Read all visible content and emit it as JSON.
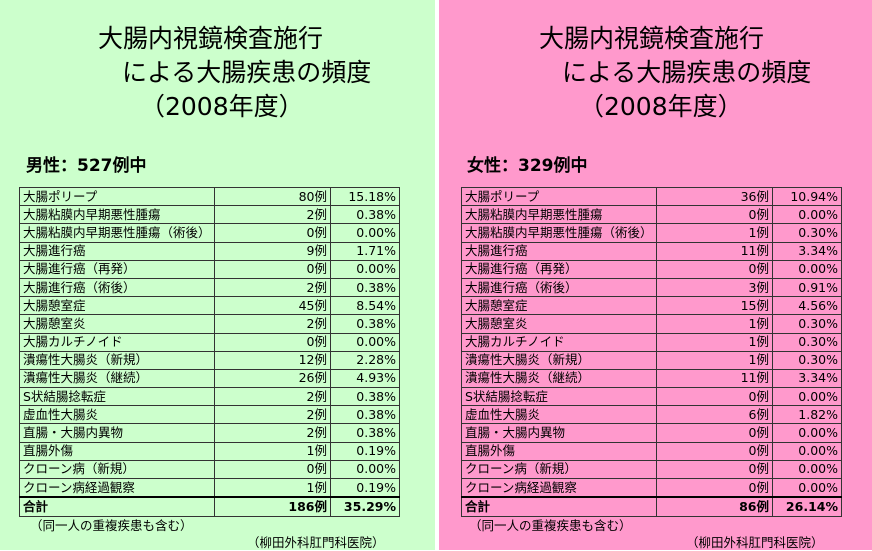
{
  "male": {
    "title_line1": "大腸内視鏡検査施行",
    "title_line2": "による大腸疾患の頻度",
    "title_line3": "（2008年度）",
    "subtitle": "男性：527例中",
    "rows": [
      {
        "name": "大腸ポリープ",
        "count": "80例",
        "pct": "15.18%"
      },
      {
        "name": "大腸粘膜内早期悪性腫瘍",
        "count": "2例",
        "pct": "0.38%"
      },
      {
        "name": "大腸粘膜内早期悪性腫瘍（術後）",
        "count": "0例",
        "pct": "0.00%"
      },
      {
        "name": "大腸進行癌",
        "count": "9例",
        "pct": "1.71%"
      },
      {
        "name": "大腸進行癌（再発）",
        "count": "0例",
        "pct": "0.00%"
      },
      {
        "name": "大腸進行癌（術後）",
        "count": "2例",
        "pct": "0.38%"
      },
      {
        "name": "大腸憩室症",
        "count": "45例",
        "pct": "8.54%"
      },
      {
        "name": "大腸憩室炎",
        "count": "2例",
        "pct": "0.38%"
      },
      {
        "name": "大腸カルチノイド",
        "count": "0例",
        "pct": "0.00%"
      },
      {
        "name": "潰瘍性大腸炎（新規）",
        "count": "12例",
        "pct": "2.28%"
      },
      {
        "name": "潰瘍性大腸炎（継続）",
        "count": "26例",
        "pct": "4.93%"
      },
      {
        "name": "S状結腸捻転症",
        "count": "2例",
        "pct": "0.38%"
      },
      {
        "name": "虚血性大腸炎",
        "count": "2例",
        "pct": "0.38%"
      },
      {
        "name": "直腸・大腸内異物",
        "count": "2例",
        "pct": "0.38%"
      },
      {
        "name": "直腸外傷",
        "count": "1例",
        "pct": "0.19%"
      },
      {
        "name": "クローン病（新規）",
        "count": "0例",
        "pct": "0.00%"
      },
      {
        "name": "クローン病経過観察",
        "count": "1例",
        "pct": "0.19%"
      }
    ],
    "total": {
      "name": "合計",
      "count": "186例",
      "pct": "35.29%"
    },
    "note": "（同一人の重複疾患も含む）",
    "clinic": "（柳田外科肛門科医院）"
  },
  "female": {
    "title_line1": "大腸内視鏡検査施行",
    "title_line2": "による大腸疾患の頻度",
    "title_line3": "（2008年度）",
    "subtitle": "女性：329例中",
    "rows": [
      {
        "name": "大腸ポリープ",
        "count": "36例",
        "pct": "10.94%"
      },
      {
        "name": "大腸粘膜内早期悪性腫瘍",
        "count": "0例",
        "pct": "0.00%"
      },
      {
        "name": "大腸粘膜内早期悪性腫瘍（術後）",
        "count": "1例",
        "pct": "0.30%"
      },
      {
        "name": "大腸進行癌",
        "count": "11例",
        "pct": "3.34%"
      },
      {
        "name": "大腸進行癌（再発）",
        "count": "0例",
        "pct": "0.00%"
      },
      {
        "name": "大腸進行癌（術後）",
        "count": "3例",
        "pct": "0.91%"
      },
      {
        "name": "大腸憩室症",
        "count": "15例",
        "pct": "4.56%"
      },
      {
        "name": "大腸憩室炎",
        "count": "1例",
        "pct": "0.30%"
      },
      {
        "name": "大腸カルチノイド",
        "count": "1例",
        "pct": "0.30%"
      },
      {
        "name": "潰瘍性大腸炎（新規）",
        "count": "1例",
        "pct": "0.30%"
      },
      {
        "name": "潰瘍性大腸炎（継続）",
        "count": "11例",
        "pct": "3.34%"
      },
      {
        "name": "S状結腸捻転症",
        "count": "0例",
        "pct": "0.00%"
      },
      {
        "name": "虚血性大腸炎",
        "count": "6例",
        "pct": "1.82%"
      },
      {
        "name": "直腸・大腸内異物",
        "count": "0例",
        "pct": "0.00%"
      },
      {
        "name": "直腸外傷",
        "count": "0例",
        "pct": "0.00%"
      },
      {
        "name": "クローン病（新規）",
        "count": "0例",
        "pct": "0.00%"
      },
      {
        "name": "クローン病経過観察",
        "count": "0例",
        "pct": "0.00%"
      }
    ],
    "total": {
      "name": "合計",
      "count": "86例",
      "pct": "26.14%"
    },
    "note": "（同一人の重複疾患も含む）",
    "clinic": "（柳田外科肛門科医院）"
  },
  "colors": {
    "male_bg": "#ccffcc",
    "female_bg": "#ff99cc"
  }
}
